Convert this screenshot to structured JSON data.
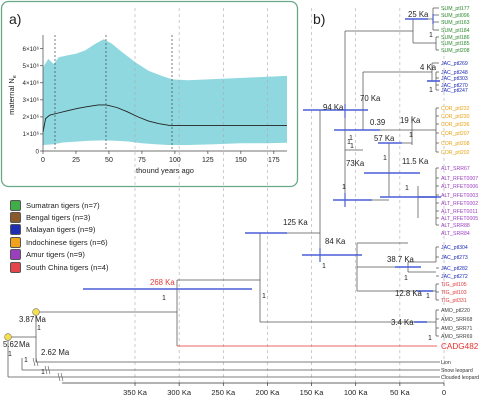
{
  "panel_a": {
    "label": "a)",
    "ylabel": "maternal N",
    "ylabel_sub": "e",
    "xlabel": "thound years ago",
    "xticks": [
      "0",
      "25",
      "50",
      "75",
      "100",
      "125",
      "150",
      "175"
    ],
    "yticks": [
      "0",
      "1×10⁶",
      "2×10⁶",
      "3×10⁶",
      "4×10⁶",
      "5×10⁶",
      "6×10⁶"
    ]
  },
  "panel_b": {
    "label": "b)"
  },
  "legend": [
    {
      "label": "Sumatran tigers (n=7)",
      "color": "#3fae49"
    },
    {
      "label": "Bengal tigers (n=3)",
      "color": "#8b5a2b"
    },
    {
      "label": "Malayan tigers (n=9)",
      "color": "#1f2db4"
    },
    {
      "label": "Indochinese tigers (n=6)",
      "color": "#f0a21c"
    },
    {
      "label": "Amur tigers (n=9)",
      "color": "#9b3fbf"
    },
    {
      "label": "South China tigers (n=4)",
      "color": "#e5464b"
    }
  ],
  "tree_axis": {
    "ticks": [
      "350 Ka",
      "300 Ka",
      "250 Ka",
      "200 Ka",
      "150 Ka",
      "100 Ka",
      "50 Ka",
      "0"
    ]
  },
  "nodes": {
    "n25": "25 Ka",
    "n4": "4 Ka",
    "n70": "70 Ka",
    "n039": "0.39",
    "n94": "94 Ka",
    "n57": "57 Ka",
    "n19": "19 Ka",
    "n73": "73Ka",
    "n115": "11.5 Ka",
    "n125": "125 Ka",
    "n84": "84 Ka",
    "n387": "38.7 Ka",
    "n128": "12.8 Ka",
    "n34": "3.4 Ka",
    "n268": "268 Ka",
    "n387ma": "3.87",
    "n387ma_unit": "Ma",
    "n562ma": "5.62",
    "n562ma_unit": "Ma",
    "n262ma": "2.62 Ma"
  },
  "support": {
    "one": "1"
  },
  "tips": {
    "sum": [
      "SUM_ptl177",
      "SUM_ptl096",
      "SUM_ptl163",
      "SUM_ptl184",
      "SUM_ptl186",
      "SUM_ptl185",
      "SUM_ptl208"
    ],
    "jac1": [
      "JAC_ptl269",
      "JAC_ptl248",
      "JAC_ptl303",
      "JAC_ptl270",
      "JAC_ptl247"
    ],
    "cor": [
      "COR_ptl232",
      "COR_ptl230",
      "COR_ptl236",
      "COR_ptl207",
      "COR_ptl208",
      "COR_ptl202"
    ],
    "alt": [
      "ALT_SRR67",
      "ALT_RFET0007",
      "ALT_RFET0006",
      "ALT_RFET0003",
      "ALT_RFET0002",
      "ALT_RFET0011",
      "ALT_RFET0005",
      "ALT_SRR88",
      "ALT_SRR84"
    ],
    "jac2": [
      "JAC_ptl304",
      "JAC_ptl273",
      "JAC_ptl282",
      "JAC_ptl272"
    ],
    "tig": [
      "TIG_ptl105",
      "TIG_ptl103",
      "TIG_ptl331"
    ],
    "amo": [
      "AMO_ptl220",
      "AMO_SRR68",
      "AMO_SRR71",
      "AMO_SRR69"
    ],
    "cadg": "CADG482",
    "outgroups": [
      "Lion",
      "Snow leopard",
      "Clouded leopard"
    ]
  },
  "colors": {
    "sum": "#2e8b2e",
    "jac": "#1f2db4",
    "cor": "#e8a317",
    "alt": "#9b3fbf",
    "tig": "#e23a3a",
    "amo": "#444444",
    "cadg": "#e8302b",
    "bar": "#4a5fd6",
    "band": "#8fd8df",
    "panel_border": "#6aa88a",
    "node_dot": "#f5e04a"
  }
}
